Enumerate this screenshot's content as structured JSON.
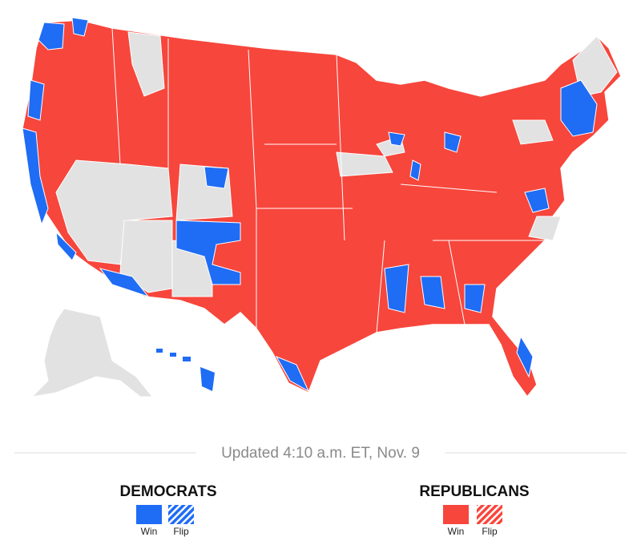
{
  "header": {
    "updated": "Updated 4:10 a.m. ET, Nov. 9"
  },
  "legend": {
    "democrats": {
      "title": "DEMOCRATS",
      "win": "Win",
      "flip": "Flip"
    },
    "republicans": {
      "title": "REPUBLICANS",
      "win": "Win",
      "flip": "Flip"
    }
  }
}
